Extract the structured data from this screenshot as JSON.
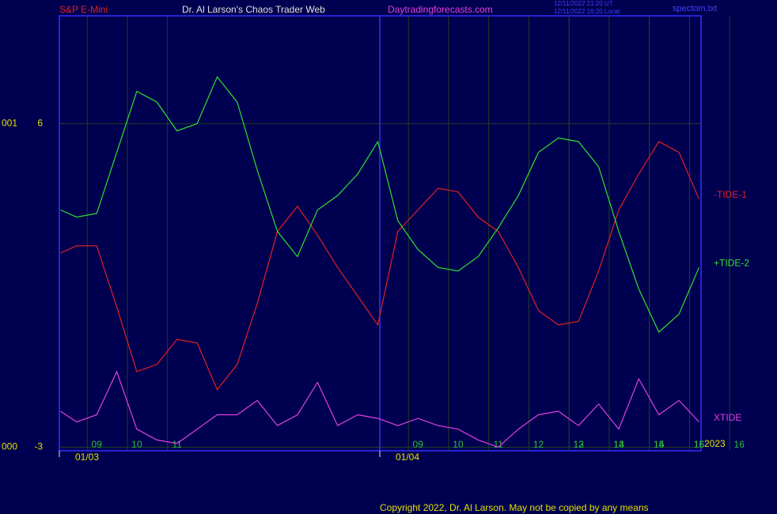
{
  "header": {
    "instrument": "S&P E-Mini",
    "site_title": "Dr. Al Larson's Chaos Trader Web",
    "site_url": "Daytradingforecasts.com",
    "timestamp_ut": "12/11/2022 21:20 UT",
    "timestamp_local": "12/11/2022 16:20 Local",
    "file": "spectom.txt"
  },
  "footer": {
    "copyright": "Copyright 2022, Dr. Al Larson. May not be copied by any means"
  },
  "chart_data": {
    "type": "line",
    "x": [
      -0.9,
      -0.5,
      0,
      0.5,
      1,
      1.5,
      2,
      2.5,
      3,
      3.5,
      4,
      4.5,
      5,
      5.5,
      6,
      6.5,
      7,
      7.5,
      8,
      8.5,
      9,
      9.5,
      10,
      10.5,
      11,
      11.5,
      12,
      12.5,
      13,
      13.5,
      14,
      14.5,
      15
    ],
    "series": [
      {
        "name": "-TIDE-1",
        "color": "#e02020",
        "values": [
          2.4,
          2.6,
          2.6,
          0.9,
          -0.9,
          -0.7,
          0.0,
          -0.1,
          -1.4,
          -0.7,
          1.0,
          3.0,
          3.7,
          2.9,
          2.0,
          1.2,
          0.4,
          3.0,
          3.6,
          4.2,
          4.1,
          3.4,
          3.0,
          2.0,
          0.8,
          0.4,
          0.5,
          1.9,
          3.6,
          4.6,
          5.5,
          5.2,
          3.9
        ]
      },
      {
        "name": "+TIDE-2",
        "color": "#30e030",
        "values": [
          3.6,
          3.4,
          3.5,
          5.2,
          6.9,
          6.6,
          5.8,
          6.0,
          7.3,
          6.6,
          4.7,
          3.0,
          2.3,
          3.6,
          4.0,
          4.6,
          5.5,
          3.3,
          2.5,
          2.0,
          1.9,
          2.3,
          3.1,
          4.0,
          5.2,
          5.6,
          5.5,
          4.8,
          3.0,
          1.4,
          0.2,
          0.7,
          2.0
        ]
      },
      {
        "name": "XTIDE",
        "color": "#e040e0",
        "values": [
          -2.0,
          -2.3,
          -2.1,
          -0.9,
          -2.5,
          -2.8,
          -2.9,
          -2.5,
          -2.1,
          -2.1,
          -1.7,
          -2.4,
          -2.1,
          -1.2,
          -2.4,
          -2.1,
          -2.2,
          -2.4,
          -2.2,
          -2.4,
          -2.5,
          -2.8,
          -3.0,
          -2.5,
          -2.1,
          -2.0,
          -2.4,
          -1.8,
          -2.5,
          -1.1,
          -2.1,
          -1.7,
          -2.3
        ]
      }
    ],
    "xlim": [
      -0.93,
      15.05
    ],
    "xticks": [
      {
        "value": 0,
        "label": "09"
      },
      {
        "value": 1,
        "label": "10"
      },
      {
        "value": 2,
        "label": "11"
      },
      12,
      13,
      14,
      15,
      16,
      {
        "value": 8,
        "label": "09"
      },
      {
        "value": 9,
        "label": "10"
      },
      {
        "value": 10,
        "label": "11"
      },
      {
        "value": 11,
        "label": "12"
      },
      {
        "value": 12,
        "label": "13"
      },
      {
        "value": 13,
        "label": "14"
      },
      {
        "value": 14,
        "label": "15"
      },
      {
        "value": 15,
        "label": "16"
      }
    ],
    "day_ticks": [
      {
        "value": -0.93,
        "label": "01/03"
      },
      {
        "value": 7.05,
        "label": "01/04"
      }
    ],
    "year_label": "2023",
    "ylim": [
      -3.1,
      9
    ],
    "yticks": [
      6,
      -3
    ],
    "y_side_labels": [
      "001",
      "000"
    ],
    "grid": true
  }
}
